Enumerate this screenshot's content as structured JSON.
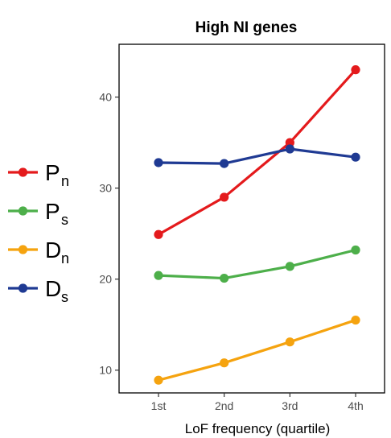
{
  "chart_data": {
    "type": "line",
    "title": "High NI genes",
    "xlabel": "LoF frequency (quartile)",
    "ylabel": "",
    "categories": [
      "1st",
      "2nd",
      "3rd",
      "4th"
    ],
    "y_ticks": [
      10,
      20,
      30,
      40
    ],
    "ylim": [
      7.5,
      45.8
    ],
    "grid": false,
    "legend_position": "left",
    "series": [
      {
        "name": "P",
        "subscript": "n",
        "color": "#e41a1c",
        "values": [
          24.9,
          29.0,
          35.0,
          43.0
        ]
      },
      {
        "name": "P",
        "subscript": "s",
        "color": "#4daf4a",
        "values": [
          20.4,
          20.1,
          21.4,
          23.2
        ]
      },
      {
        "name": "D",
        "subscript": "n",
        "color": "#f5a30f",
        "values": [
          8.9,
          10.8,
          13.1,
          15.5
        ]
      },
      {
        "name": "D",
        "subscript": "s",
        "color": "#1f3a93",
        "values": [
          32.8,
          32.7,
          34.3,
          33.4
        ]
      }
    ]
  }
}
